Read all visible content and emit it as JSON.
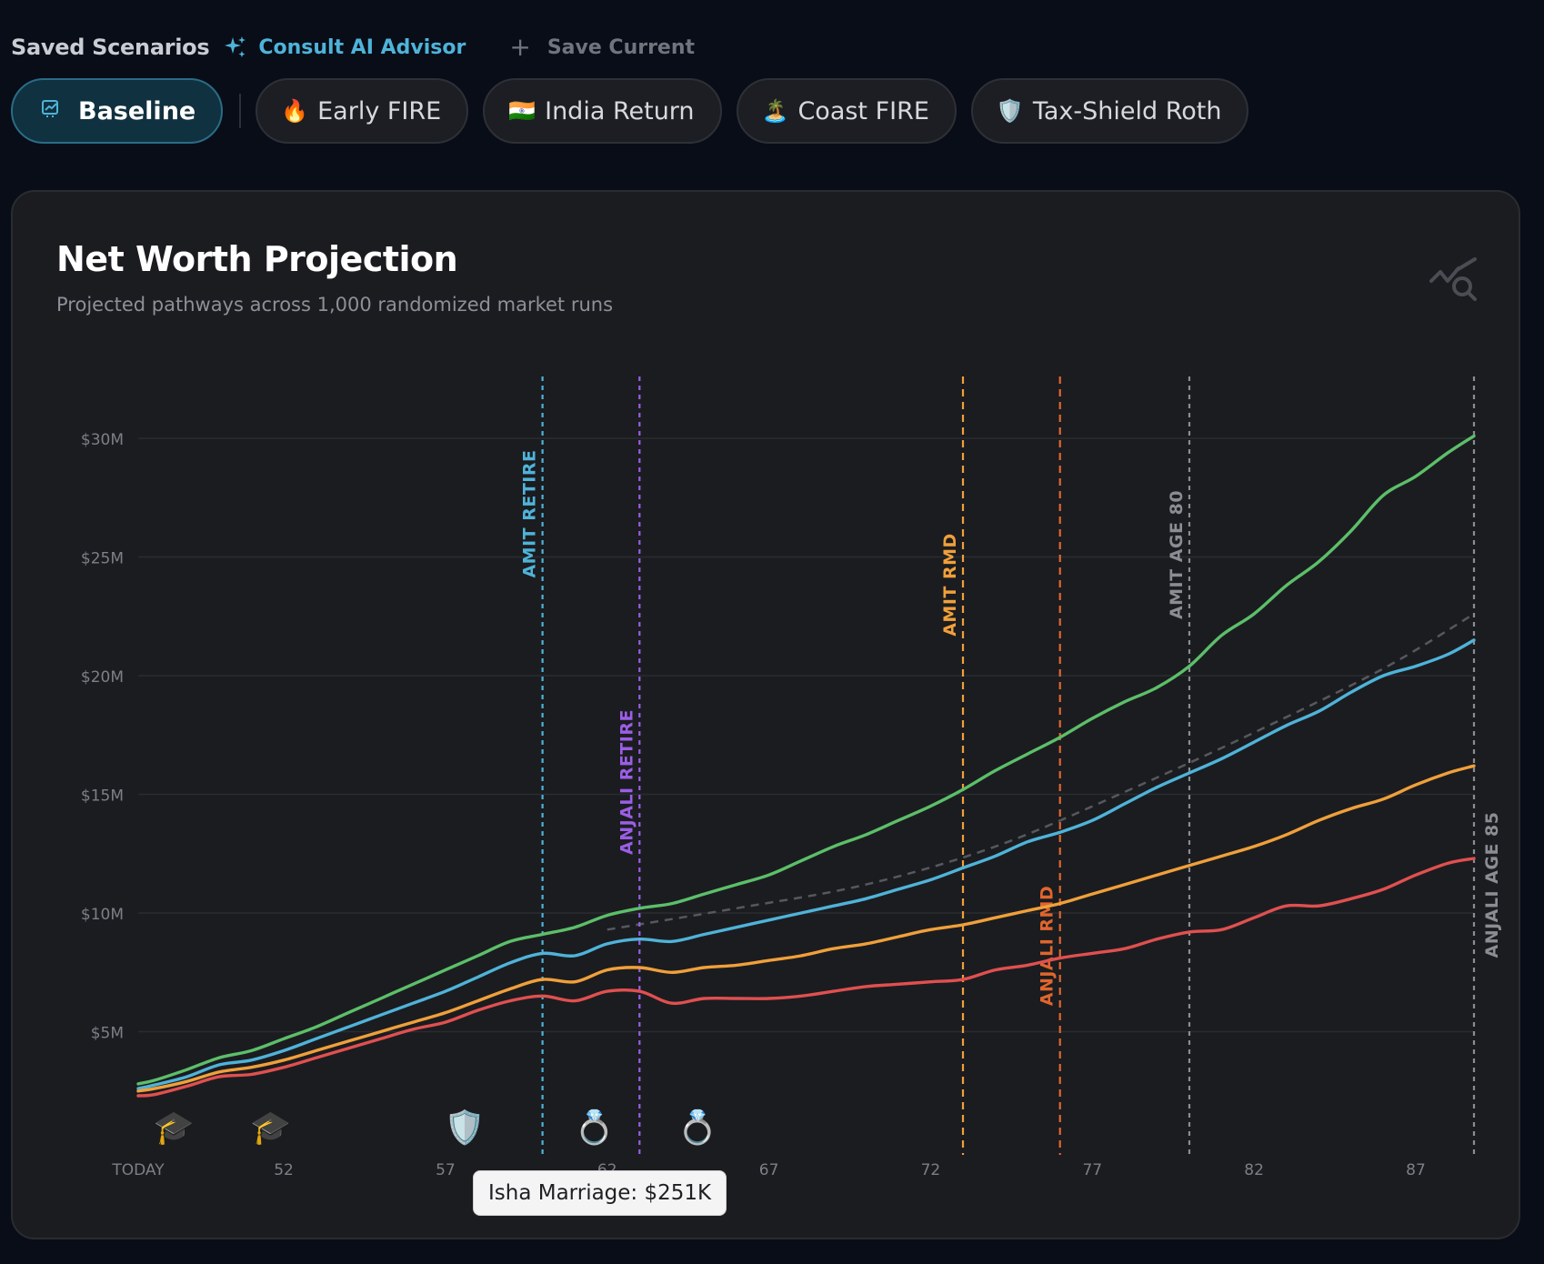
{
  "header": {
    "saved_title": "Saved Scenarios",
    "advisor_label": "Consult AI Advisor",
    "save_label": "Save Current"
  },
  "scenarios": [
    {
      "label": "Baseline",
      "icon": "projection-icon",
      "active": true
    },
    {
      "label": "Early FIRE",
      "icon": "🔥",
      "active": false
    },
    {
      "label": "India Return",
      "icon": "🇮🇳",
      "active": false
    },
    {
      "label": "Coast FIRE",
      "icon": "🏝️",
      "active": false
    },
    {
      "label": "Tax-Shield Roth",
      "icon": "🛡️",
      "active": false
    }
  ],
  "card": {
    "title": "Net Worth Projection",
    "subtitle": "Projected pathways across 1,000 randomized market runs",
    "icon": "chart-search-icon"
  },
  "tooltip": "Isha Marriage: $251K",
  "colors": {
    "accent": "#4fb3d9",
    "green": "#5cbf69",
    "blue": "#4fb3d9",
    "orange": "#f0a03a",
    "red": "#e0504f",
    "purple": "#9b5ee6",
    "rust": "#e0662e",
    "gray": "#8a8d93"
  },
  "chart_data": {
    "type": "line",
    "x": [
      47.5,
      48,
      49,
      50,
      51,
      52,
      53,
      54,
      55,
      56,
      57,
      58,
      59,
      60,
      61,
      62,
      63,
      64,
      65,
      66,
      67,
      68,
      69,
      70,
      71,
      72,
      73,
      74,
      75,
      76,
      77,
      78,
      79,
      80,
      81,
      82,
      83,
      84,
      85,
      86,
      87,
      88,
      88.8
    ],
    "x_tick_values": [
      47.5,
      52,
      57,
      62,
      67,
      72,
      77,
      82,
      87
    ],
    "x_tick_labels": [
      "TODAY",
      "52",
      "57",
      "62",
      "67",
      "72",
      "77",
      "82",
      "87"
    ],
    "xlim": [
      47.5,
      88.8
    ],
    "y_tick_values": [
      5,
      10,
      15,
      20,
      25,
      30
    ],
    "y_tick_labels": [
      "$5M",
      "$10M",
      "$15M",
      "$20M",
      "$25M",
      "$30M"
    ],
    "ylim": [
      0,
      33
    ],
    "y_unit": "$M",
    "series": [
      {
        "color": "#5cbf69",
        "values": [
          2.8,
          2.95,
          3.4,
          3.9,
          4.2,
          4.7,
          5.2,
          5.8,
          6.4,
          7.0,
          7.6,
          8.2,
          8.8,
          9.1,
          9.4,
          9.9,
          10.2,
          10.4,
          10.8,
          11.2,
          11.6,
          12.2,
          12.8,
          13.3,
          13.9,
          14.5,
          15.2,
          16.0,
          16.7,
          17.4,
          18.2,
          18.9,
          19.5,
          20.4,
          21.7,
          22.6,
          23.8,
          24.8,
          26.1,
          27.6,
          28.4,
          29.4,
          30.1
        ]
      },
      {
        "color": "#4fb3d9",
        "values": [
          2.6,
          2.75,
          3.1,
          3.6,
          3.8,
          4.2,
          4.7,
          5.2,
          5.7,
          6.2,
          6.7,
          7.3,
          7.9,
          8.3,
          8.2,
          8.7,
          8.9,
          8.8,
          9.1,
          9.4,
          9.7,
          10.0,
          10.3,
          10.6,
          11.0,
          11.4,
          11.9,
          12.4,
          13.0,
          13.4,
          13.9,
          14.6,
          15.3,
          15.9,
          16.5,
          17.2,
          17.9,
          18.5,
          19.3,
          20.0,
          20.4,
          20.9,
          21.5
        ]
      },
      {
        "color": "#f0a03a",
        "values": [
          2.5,
          2.6,
          2.9,
          3.3,
          3.5,
          3.8,
          4.2,
          4.6,
          5.0,
          5.4,
          5.8,
          6.3,
          6.8,
          7.2,
          7.1,
          7.6,
          7.7,
          7.5,
          7.7,
          7.8,
          8.0,
          8.2,
          8.5,
          8.7,
          9.0,
          9.3,
          9.5,
          9.8,
          10.1,
          10.4,
          10.8,
          11.2,
          11.6,
          12.0,
          12.4,
          12.8,
          13.3,
          13.9,
          14.4,
          14.8,
          15.4,
          15.9,
          16.2
        ]
      },
      {
        "color": "#e0504f",
        "values": [
          2.3,
          2.35,
          2.7,
          3.1,
          3.2,
          3.5,
          3.9,
          4.3,
          4.7,
          5.1,
          5.4,
          5.9,
          6.3,
          6.5,
          6.3,
          6.7,
          6.7,
          6.2,
          6.4,
          6.4,
          6.4,
          6.5,
          6.7,
          6.9,
          7.0,
          7.1,
          7.2,
          7.6,
          7.8,
          8.1,
          8.3,
          8.5,
          8.9,
          9.2,
          9.3,
          9.8,
          10.3,
          10.3,
          10.6,
          11.0,
          11.6,
          12.1,
          12.3
        ]
      }
    ],
    "trend": {
      "color": "#55585e",
      "x": [
        62,
        66,
        70,
        74,
        78,
        82,
        86,
        88.8
      ],
      "values": [
        9.3,
        10.2,
        11.2,
        12.8,
        15.1,
        17.6,
        20.3,
        22.6
      ]
    },
    "events": [
      {
        "x": 60.0,
        "label": "AMIT RETIRE",
        "color": "#4fb3d9",
        "dash": "5,5"
      },
      {
        "x": 63.0,
        "label": "ANJALI RETIRE",
        "color": "#9b5ee6",
        "dash": "5,5"
      },
      {
        "x": 73.0,
        "label": "AMIT RMD",
        "color": "#f0a03a",
        "dash": "8,6"
      },
      {
        "x": 76.0,
        "label": "ANJALI RMD",
        "color": "#e0662e",
        "dash": "8,6"
      },
      {
        "x": 80.0,
        "label": "AMIT AGE 80",
        "color": "#8a8d93",
        "dash": "5,5"
      },
      {
        "x": 88.8,
        "label": "ANJALI AGE 85",
        "color": "#8a8d93",
        "dash": "5,5"
      }
    ],
    "milestones": [
      {
        "x": 48.6,
        "icon": "🎓",
        "name": "graduation-icon"
      },
      {
        "x": 51.6,
        "icon": "🎓",
        "name": "graduation-icon"
      },
      {
        "x": 57.6,
        "icon": "🛡️",
        "name": "shield-icon"
      },
      {
        "x": 61.6,
        "icon": "💍",
        "name": "ring-icon"
      },
      {
        "x": 64.8,
        "icon": "💍",
        "name": "ring-icon"
      }
    ]
  }
}
